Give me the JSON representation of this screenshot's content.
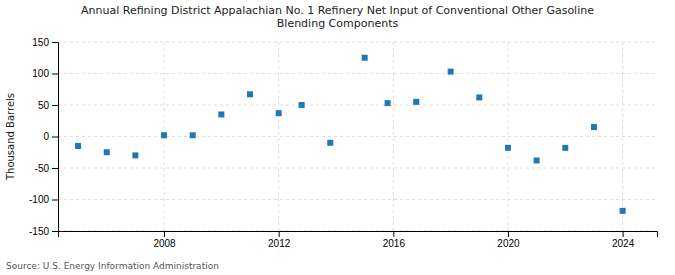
{
  "chart_data": {
    "type": "scatter",
    "title": "Annual Refining District Appalachian No. 1 Refinery Net Input of Conventional Other Gasoline\nBlending Components",
    "ylabel": "Thousand Barrels",
    "source": "Source: U.S. Energy Information Administration",
    "marker": "square",
    "grid": true,
    "xlim": [
      2004.3,
      2025.2
    ],
    "xticks": [
      2008,
      2012,
      2016,
      2020,
      2024
    ],
    "ylim": [
      -150,
      150
    ],
    "yticks": [
      -150,
      -100,
      -50,
      0,
      50,
      100,
      150
    ],
    "x": [
      2005,
      2006,
      2007,
      2008,
      2009,
      2010,
      2011,
      2012,
      2012.8,
      2013.8,
      2015,
      2015.8,
      2016.8,
      2018,
      2019,
      2020,
      2021,
      2022,
      2023,
      2024
    ],
    "values": [
      -15,
      -25,
      -30,
      2,
      2,
      35,
      67,
      37,
      50,
      -10,
      125,
      53,
      55,
      103,
      62,
      -18,
      -38,
      -18,
      15,
      -118
    ]
  }
}
